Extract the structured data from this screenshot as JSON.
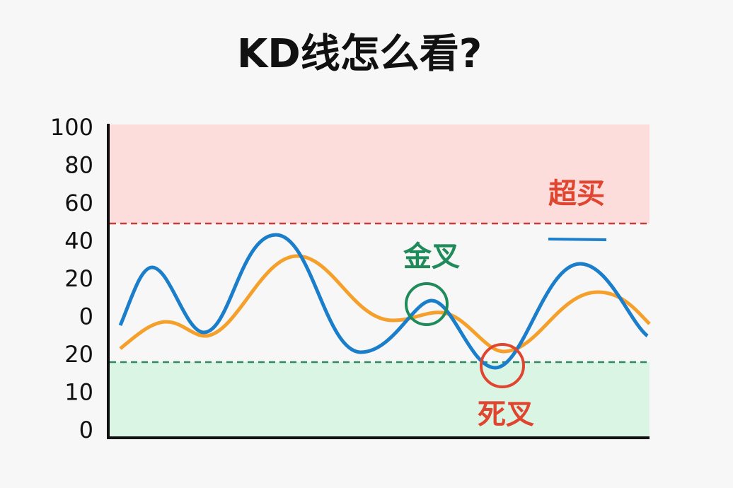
{
  "title": "KD线怎么看?",
  "y_axis_labels": [
    "100",
    "80",
    "60",
    "40",
    "20",
    "0",
    "20",
    "10",
    "0"
  ],
  "annotations": {
    "overbought": "超买",
    "golden_cross": "金叉",
    "death_cross": "死叉"
  }
}
